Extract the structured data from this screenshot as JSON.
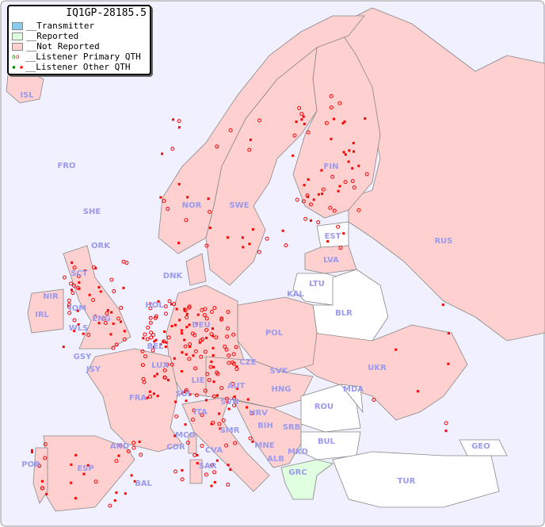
{
  "title": "IQ1GP-28185.5",
  "legend": [
    {
      "label": "__Transmitter",
      "color": "#88ccee"
    },
    {
      "label": "__Reported",
      "color": "#e0ffe0"
    },
    {
      "label": "__Not Reported",
      "color": "#ffd0d0"
    },
    {
      "label": "__Listener Primary QTH",
      "icon": "open-circle"
    },
    {
      "label": "__Listener Other QTH",
      "icon": "filled-square"
    }
  ],
  "colors": {
    "sea": "#f0f0ff",
    "not_reported": "#ffd0d0",
    "reported": "#e0ffe0",
    "no_data": "#ffffff",
    "marker": "#ff0000",
    "label": "#9a9aee"
  },
  "countries": [
    "ISL",
    "FRO",
    "SHE",
    "ORK",
    "NOR",
    "SWE",
    "FIN",
    "EST",
    "RUS",
    "LVA",
    "LTU",
    "KAL",
    "BLR",
    "DNK",
    "IRL",
    "NIR",
    "SCT",
    "IOM",
    "WLS",
    "ENG",
    "HOL",
    "BEL",
    "DEU",
    "POL",
    "GSY",
    "JSY",
    "LUX",
    "CZE",
    "SVK",
    "UKR",
    "FRA",
    "SUI",
    "LIE",
    "AUT",
    "HNG",
    "MDA",
    "SVN",
    "HRV",
    "ROU",
    "ITA",
    "BIH",
    "SRB",
    "MCO",
    "COR",
    "CVA",
    "SMR",
    "MNE",
    "ALB",
    "MKD",
    "BUL",
    "GEO",
    "AND",
    "POR",
    "ESP",
    "BAL",
    "SAR",
    "GRC",
    "TUR"
  ]
}
